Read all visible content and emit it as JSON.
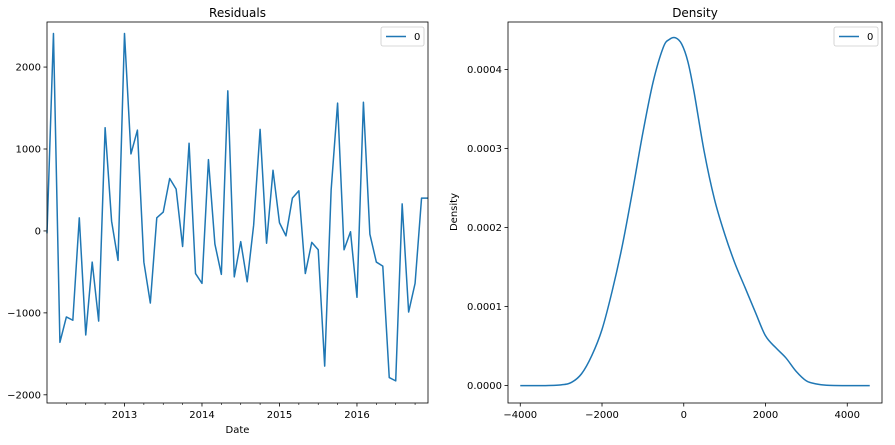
{
  "chart_data": [
    {
      "type": "line",
      "title": "Residuals",
      "xlabel": "Date",
      "ylabel": "",
      "ylim": [
        -2100,
        2550
      ],
      "xlim": [
        "2012-01",
        "2016-12"
      ],
      "xticks": [
        "2013",
        "2014",
        "2015",
        "2016"
      ],
      "yticks": [
        -2000,
        -1000,
        0,
        1000,
        2000
      ],
      "grid": false,
      "legend": "top-right",
      "color": "#1f77b4",
      "series": [
        {
          "name": "0",
          "x": [
            "2012-01",
            "2012-02",
            "2012-03",
            "2012-04",
            "2012-05",
            "2012-06",
            "2012-07",
            "2012-08",
            "2012-09",
            "2012-10",
            "2012-11",
            "2012-12",
            "2013-01",
            "2013-02",
            "2013-03",
            "2013-04",
            "2013-05",
            "2013-06",
            "2013-07",
            "2013-08",
            "2013-09",
            "2013-10",
            "2013-11",
            "2013-12",
            "2014-01",
            "2014-02",
            "2014-03",
            "2014-04",
            "2014-05",
            "2014-06",
            "2014-07",
            "2014-08",
            "2014-09",
            "2014-10",
            "2014-11",
            "2014-12",
            "2015-01",
            "2015-02",
            "2015-03",
            "2015-04",
            "2015-05",
            "2015-06",
            "2015-07",
            "2015-08",
            "2015-09",
            "2015-10",
            "2015-11",
            "2015-12",
            "2016-01",
            "2016-02",
            "2016-03",
            "2016-04",
            "2016-05",
            "2016-06",
            "2016-07",
            "2016-08",
            "2016-09",
            "2016-10",
            "2016-11",
            "2016-12"
          ],
          "y": [
            -30,
            2410,
            -1360,
            -1050,
            -1090,
            160,
            -1270,
            -380,
            -1100,
            1260,
            120,
            -360,
            2410,
            940,
            1230,
            -380,
            -880,
            160,
            230,
            640,
            510,
            -190,
            1070,
            -520,
            -640,
            870,
            -160,
            -530,
            1710,
            -560,
            -130,
            -620,
            70,
            1240,
            -150,
            740,
            100,
            -60,
            400,
            490,
            -520,
            -140,
            -230,
            -1650,
            500,
            1560,
            -230,
            -10,
            -810,
            1570,
            -40,
            -380,
            -430,
            -1790,
            -1830,
            330,
            -990,
            -640,
            400,
            400
          ]
        }
      ]
    },
    {
      "type": "line",
      "title": "Density",
      "xlabel": "",
      "ylabel": "Density",
      "xlim": [
        -4300,
        4850
      ],
      "ylim": [
        -2.2e-05,
        0.00046
      ],
      "xticks": [
        -4000,
        -2000,
        0,
        2000,
        4000
      ],
      "yticks": [
        0.0,
        0.0001,
        0.0002,
        0.0003,
        0.0004
      ],
      "ytick_labels": [
        "0.0000",
        "0.0001",
        "0.0002",
        "0.0003",
        "0.0004"
      ],
      "grid": false,
      "legend": "top-right",
      "color": "#1f77b4",
      "series": [
        {
          "name": "0",
          "x": [
            -4000,
            -3500,
            -3000,
            -2750,
            -2500,
            -2250,
            -2000,
            -1750,
            -1500,
            -1250,
            -1000,
            -750,
            -500,
            -350,
            -200,
            -50,
            100,
            250,
            500,
            750,
            1000,
            1250,
            1500,
            1750,
            2000,
            2250,
            2500,
            2750,
            3000,
            3250,
            3500,
            4000,
            4550
          ],
          "y": [
            0.0,
            0.0,
            1e-06,
            4e-06,
            1.5e-05,
            3.8e-05,
            7.1e-05,
            0.00012,
            0.000178,
            0.000247,
            0.00032,
            0.000384,
            0.000428,
            0.000438,
            0.00044,
            0.000432,
            0.00041,
            0.000372,
            0.000296,
            0.000236,
            0.000192,
            0.000155,
            0.000124,
            9.3e-05,
            6.3e-05,
            4.8e-05,
            3.5e-05,
            1.8e-05,
            6e-06,
            2e-06,
            5e-07,
            0.0,
            0.0
          ]
        }
      ]
    }
  ]
}
